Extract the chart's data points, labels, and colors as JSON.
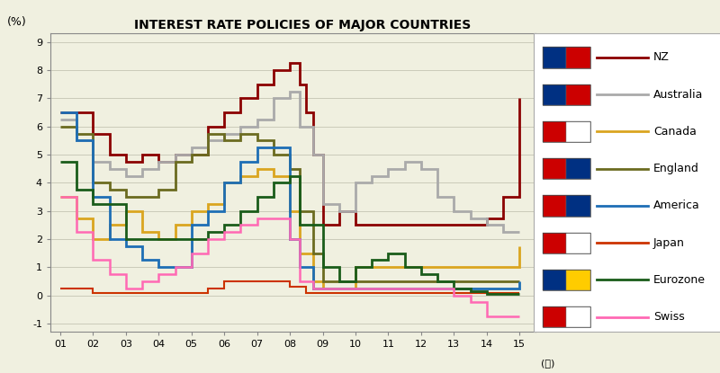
{
  "title": "INTEREST RATE POLICIES OF MAJOR COUNTRIES",
  "ylabel": "(%)",
  "xlabel": "年",
  "background_color": "#f0f0e0",
  "plot_bg_color": "#f0f0e0",
  "ylim": [
    -1.3,
    9.3
  ],
  "yticks": [
    -1,
    0,
    1,
    2,
    3,
    4,
    5,
    6,
    7,
    8,
    9
  ],
  "xticks": [
    1,
    2,
    3,
    4,
    5,
    6,
    7,
    8,
    9,
    10,
    11,
    12,
    13,
    14,
    15
  ],
  "xlim": [
    0.7,
    15.5
  ],
  "series": {
    "NZ": {
      "color": "#8b0000",
      "lw": 2.0,
      "data": [
        [
          1,
          6.5
        ],
        [
          2,
          6.5
        ],
        [
          2,
          5.75
        ],
        [
          2.5,
          5.75
        ],
        [
          2.5,
          5.0
        ],
        [
          3,
          5.0
        ],
        [
          3,
          4.75
        ],
        [
          3.5,
          4.75
        ],
        [
          3.5,
          5.0
        ],
        [
          4,
          5.0
        ],
        [
          4,
          4.75
        ],
        [
          4.5,
          4.75
        ],
        [
          4.5,
          5.0
        ],
        [
          5,
          5.0
        ],
        [
          5,
          5.0
        ],
        [
          5.5,
          5.0
        ],
        [
          5.5,
          6.0
        ],
        [
          6,
          6.0
        ],
        [
          6,
          6.5
        ],
        [
          6.5,
          6.5
        ],
        [
          6.5,
          7.0
        ],
        [
          7,
          7.0
        ],
        [
          7,
          7.5
        ],
        [
          7.5,
          7.5
        ],
        [
          7.5,
          8.0
        ],
        [
          8,
          8.0
        ],
        [
          8,
          8.25
        ],
        [
          8.3,
          8.25
        ],
        [
          8.3,
          7.5
        ],
        [
          8.5,
          7.5
        ],
        [
          8.5,
          6.5
        ],
        [
          8.7,
          6.5
        ],
        [
          8.7,
          5.0
        ],
        [
          9,
          5.0
        ],
        [
          9,
          2.5
        ],
        [
          9.5,
          2.5
        ],
        [
          9.5,
          3.0
        ],
        [
          10,
          3.0
        ],
        [
          10,
          2.5
        ],
        [
          13,
          2.5
        ],
        [
          13,
          2.5
        ],
        [
          14,
          2.5
        ],
        [
          14,
          2.75
        ],
        [
          14.5,
          2.75
        ],
        [
          14.5,
          3.5
        ],
        [
          15,
          3.5
        ],
        [
          15,
          7.0
        ]
      ]
    },
    "Australia": {
      "color": "#aaaaaa",
      "lw": 2.0,
      "data": [
        [
          1,
          6.25
        ],
        [
          1.5,
          6.25
        ],
        [
          1.5,
          5.5
        ],
        [
          2,
          5.5
        ],
        [
          2,
          4.75
        ],
        [
          2.5,
          4.75
        ],
        [
          2.5,
          4.5
        ],
        [
          3,
          4.5
        ],
        [
          3,
          4.25
        ],
        [
          3.5,
          4.25
        ],
        [
          3.5,
          4.5
        ],
        [
          4,
          4.5
        ],
        [
          4,
          4.75
        ],
        [
          4.5,
          4.75
        ],
        [
          4.5,
          5.0
        ],
        [
          5,
          5.0
        ],
        [
          5,
          5.25
        ],
        [
          5.5,
          5.25
        ],
        [
          5.5,
          5.5
        ],
        [
          6,
          5.5
        ],
        [
          6,
          5.75
        ],
        [
          6.5,
          5.75
        ],
        [
          6.5,
          6.0
        ],
        [
          7,
          6.0
        ],
        [
          7,
          6.25
        ],
        [
          7.5,
          6.25
        ],
        [
          7.5,
          7.0
        ],
        [
          8,
          7.0
        ],
        [
          8,
          7.25
        ],
        [
          8.3,
          7.25
        ],
        [
          8.3,
          6.0
        ],
        [
          8.7,
          6.0
        ],
        [
          8.7,
          5.0
        ],
        [
          9,
          5.0
        ],
        [
          9,
          3.25
        ],
        [
          9.5,
          3.25
        ],
        [
          9.5,
          3.0
        ],
        [
          10,
          3.0
        ],
        [
          10,
          4.0
        ],
        [
          10.5,
          4.0
        ],
        [
          10.5,
          4.25
        ],
        [
          11,
          4.25
        ],
        [
          11,
          4.5
        ],
        [
          11.5,
          4.5
        ],
        [
          11.5,
          4.75
        ],
        [
          12,
          4.75
        ],
        [
          12,
          4.5
        ],
        [
          12.5,
          4.5
        ],
        [
          12.5,
          3.5
        ],
        [
          13,
          3.5
        ],
        [
          13,
          3.0
        ],
        [
          13.5,
          3.0
        ],
        [
          13.5,
          2.75
        ],
        [
          14,
          2.75
        ],
        [
          14,
          2.5
        ],
        [
          14.5,
          2.5
        ],
        [
          14.5,
          2.25
        ],
        [
          15,
          2.25
        ],
        [
          15,
          2.25
        ]
      ]
    },
    "Canada": {
      "color": "#daa520",
      "lw": 2.0,
      "data": [
        [
          1,
          3.5
        ],
        [
          1.5,
          3.5
        ],
        [
          1.5,
          2.75
        ],
        [
          2,
          2.75
        ],
        [
          2,
          2.0
        ],
        [
          2.5,
          2.0
        ],
        [
          2.5,
          2.5
        ],
        [
          3,
          2.5
        ],
        [
          3,
          3.0
        ],
        [
          3.5,
          3.0
        ],
        [
          3.5,
          2.25
        ],
        [
          4,
          2.25
        ],
        [
          4,
          2.0
        ],
        [
          4.5,
          2.0
        ],
        [
          4.5,
          2.5
        ],
        [
          5,
          2.5
        ],
        [
          5,
          3.0
        ],
        [
          5.5,
          3.0
        ],
        [
          5.5,
          3.25
        ],
        [
          6,
          3.25
        ],
        [
          6,
          4.0
        ],
        [
          6.5,
          4.0
        ],
        [
          6.5,
          4.25
        ],
        [
          7,
          4.25
        ],
        [
          7,
          4.5
        ],
        [
          7.5,
          4.5
        ],
        [
          7.5,
          4.25
        ],
        [
          8,
          4.25
        ],
        [
          8,
          3.0
        ],
        [
          8.3,
          3.0
        ],
        [
          8.3,
          1.5
        ],
        [
          8.7,
          1.5
        ],
        [
          8.7,
          0.5
        ],
        [
          9,
          0.5
        ],
        [
          9,
          0.25
        ],
        [
          10,
          0.25
        ],
        [
          10,
          1.0
        ],
        [
          11,
          1.0
        ],
        [
          12,
          1.0
        ],
        [
          13,
          1.0
        ],
        [
          14,
          1.0
        ],
        [
          15,
          1.0
        ],
        [
          15,
          1.75
        ]
      ]
    },
    "England": {
      "color": "#6b6b20",
      "lw": 2.0,
      "data": [
        [
          1,
          6.0
        ],
        [
          1.5,
          6.0
        ],
        [
          1.5,
          5.75
        ],
        [
          2,
          5.75
        ],
        [
          2,
          4.0
        ],
        [
          2.5,
          4.0
        ],
        [
          2.5,
          3.75
        ],
        [
          3,
          3.75
        ],
        [
          3,
          3.5
        ],
        [
          3.5,
          3.5
        ],
        [
          3.5,
          3.5
        ],
        [
          4,
          3.5
        ],
        [
          4,
          3.75
        ],
        [
          4.5,
          3.75
        ],
        [
          4.5,
          4.75
        ],
        [
          5,
          4.75
        ],
        [
          5,
          5.0
        ],
        [
          5.5,
          5.0
        ],
        [
          5.5,
          5.75
        ],
        [
          6,
          5.75
        ],
        [
          6,
          5.5
        ],
        [
          6.5,
          5.5
        ],
        [
          6.5,
          5.75
        ],
        [
          7,
          5.75
        ],
        [
          7,
          5.5
        ],
        [
          7.5,
          5.5
        ],
        [
          7.5,
          5.0
        ],
        [
          8,
          5.0
        ],
        [
          8,
          4.5
        ],
        [
          8.3,
          4.5
        ],
        [
          8.3,
          3.0
        ],
        [
          8.7,
          3.0
        ],
        [
          8.7,
          1.5
        ],
        [
          9,
          1.5
        ],
        [
          9,
          0.5
        ],
        [
          10,
          0.5
        ],
        [
          11,
          0.5
        ],
        [
          12,
          0.5
        ],
        [
          13,
          0.5
        ],
        [
          14,
          0.5
        ],
        [
          15,
          0.5
        ]
      ]
    },
    "America": {
      "color": "#1e6eb5",
      "lw": 2.0,
      "data": [
        [
          1,
          6.5
        ],
        [
          1.5,
          6.5
        ],
        [
          1.5,
          5.5
        ],
        [
          2,
          5.5
        ],
        [
          2,
          3.5
        ],
        [
          2.5,
          3.5
        ],
        [
          2.5,
          2.0
        ],
        [
          3,
          2.0
        ],
        [
          3,
          1.75
        ],
        [
          3.5,
          1.75
        ],
        [
          3.5,
          1.25
        ],
        [
          4,
          1.25
        ],
        [
          4,
          1.0
        ],
        [
          4.5,
          1.0
        ],
        [
          4.5,
          1.0
        ],
        [
          5,
          1.0
        ],
        [
          5,
          2.5
        ],
        [
          5.5,
          2.5
        ],
        [
          5.5,
          3.0
        ],
        [
          6,
          3.0
        ],
        [
          6,
          4.0
        ],
        [
          6.5,
          4.0
        ],
        [
          6.5,
          4.75
        ],
        [
          7,
          4.75
        ],
        [
          7,
          5.25
        ],
        [
          7.5,
          5.25
        ],
        [
          7.5,
          5.25
        ],
        [
          8,
          5.25
        ],
        [
          8,
          2.0
        ],
        [
          8.3,
          2.0
        ],
        [
          8.3,
          1.0
        ],
        [
          8.7,
          1.0
        ],
        [
          8.7,
          0.25
        ],
        [
          9,
          0.25
        ],
        [
          9,
          0.25
        ],
        [
          10,
          0.25
        ],
        [
          11,
          0.25
        ],
        [
          12,
          0.25
        ],
        [
          13,
          0.25
        ],
        [
          14,
          0.25
        ],
        [
          15,
          0.25
        ],
        [
          15,
          0.5
        ]
      ]
    },
    "Japan": {
      "color": "#cc3300",
      "lw": 1.5,
      "data": [
        [
          1,
          0.25
        ],
        [
          2,
          0.25
        ],
        [
          2,
          0.1
        ],
        [
          4,
          0.1
        ],
        [
          4,
          0.1
        ],
        [
          5,
          0.1
        ],
        [
          5,
          0.1
        ],
        [
          5.5,
          0.1
        ],
        [
          5.5,
          0.25
        ],
        [
          6,
          0.25
        ],
        [
          6,
          0.5
        ],
        [
          7,
          0.5
        ],
        [
          7,
          0.5
        ],
        [
          8,
          0.5
        ],
        [
          8,
          0.3
        ],
        [
          8.5,
          0.3
        ],
        [
          8.5,
          0.1
        ],
        [
          9,
          0.1
        ],
        [
          9,
          0.1
        ],
        [
          10,
          0.1
        ],
        [
          11,
          0.1
        ],
        [
          12,
          0.1
        ],
        [
          13,
          0.1
        ],
        [
          14,
          0.1
        ],
        [
          15,
          0.1
        ]
      ]
    },
    "Eurozone": {
      "color": "#1a5c1a",
      "lw": 2.0,
      "data": [
        [
          1,
          4.75
        ],
        [
          1.5,
          4.75
        ],
        [
          1.5,
          3.75
        ],
        [
          2,
          3.75
        ],
        [
          2,
          3.25
        ],
        [
          2.5,
          3.25
        ],
        [
          2.5,
          3.25
        ],
        [
          3,
          3.25
        ],
        [
          3,
          2.0
        ],
        [
          4,
          2.0
        ],
        [
          4,
          2.0
        ],
        [
          5,
          2.0
        ],
        [
          5,
          2.0
        ],
        [
          5.5,
          2.0
        ],
        [
          5.5,
          2.25
        ],
        [
          6,
          2.25
        ],
        [
          6,
          2.5
        ],
        [
          6.5,
          2.5
        ],
        [
          6.5,
          3.0
        ],
        [
          7,
          3.0
        ],
        [
          7,
          3.5
        ],
        [
          7.5,
          3.5
        ],
        [
          7.5,
          4.0
        ],
        [
          8,
          4.0
        ],
        [
          8,
          4.25
        ],
        [
          8.3,
          4.25
        ],
        [
          8.3,
          2.5
        ],
        [
          8.7,
          2.5
        ],
        [
          9,
          2.5
        ],
        [
          9,
          1.0
        ],
        [
          9.5,
          1.0
        ],
        [
          9.5,
          0.5
        ],
        [
          10,
          0.5
        ],
        [
          10,
          1.0
        ],
        [
          10.5,
          1.0
        ],
        [
          10.5,
          1.25
        ],
        [
          11,
          1.25
        ],
        [
          11,
          1.5
        ],
        [
          11.5,
          1.5
        ],
        [
          11.5,
          1.0
        ],
        [
          12,
          1.0
        ],
        [
          12,
          0.75
        ],
        [
          12.5,
          0.75
        ],
        [
          12.5,
          0.5
        ],
        [
          13,
          0.5
        ],
        [
          13,
          0.25
        ],
        [
          13.5,
          0.25
        ],
        [
          13.5,
          0.15
        ],
        [
          14,
          0.15
        ],
        [
          14,
          0.05
        ],
        [
          15,
          0.05
        ],
        [
          15,
          0.05
        ]
      ]
    },
    "Swiss": {
      "color": "#ff69b4",
      "lw": 1.8,
      "data": [
        [
          1,
          3.5
        ],
        [
          1.5,
          3.5
        ],
        [
          1.5,
          2.25
        ],
        [
          2,
          2.25
        ],
        [
          2,
          1.25
        ],
        [
          2.5,
          1.25
        ],
        [
          2.5,
          0.75
        ],
        [
          3,
          0.75
        ],
        [
          3,
          0.25
        ],
        [
          3.5,
          0.25
        ],
        [
          3.5,
          0.5
        ],
        [
          4,
          0.5
        ],
        [
          4,
          0.75
        ],
        [
          4.5,
          0.75
        ],
        [
          4.5,
          1.0
        ],
        [
          5,
          1.0
        ],
        [
          5,
          1.5
        ],
        [
          5.5,
          1.5
        ],
        [
          5.5,
          2.0
        ],
        [
          6,
          2.0
        ],
        [
          6,
          2.25
        ],
        [
          6.5,
          2.25
        ],
        [
          6.5,
          2.5
        ],
        [
          7,
          2.5
        ],
        [
          7,
          2.75
        ],
        [
          7.5,
          2.75
        ],
        [
          7.5,
          2.75
        ],
        [
          8,
          2.75
        ],
        [
          8,
          2.0
        ],
        [
          8.3,
          2.0
        ],
        [
          8.3,
          0.5
        ],
        [
          8.7,
          0.5
        ],
        [
          8.7,
          0.25
        ],
        [
          9,
          0.25
        ],
        [
          9,
          0.25
        ],
        [
          10,
          0.25
        ],
        [
          11,
          0.25
        ],
        [
          12,
          0.25
        ],
        [
          13,
          0.25
        ],
        [
          13,
          0.0
        ],
        [
          13.5,
          0.0
        ],
        [
          13.5,
          -0.25
        ],
        [
          14,
          -0.25
        ],
        [
          14,
          -0.75
        ],
        [
          14.5,
          -0.75
        ],
        [
          15,
          -0.75
        ]
      ]
    }
  },
  "legend_order": [
    "NZ",
    "Australia",
    "Canada",
    "England",
    "America",
    "Japan",
    "Eurozone",
    "Swiss"
  ],
  "legend_flag_colors": {
    "NZ": [
      "#003082",
      "#cc0000"
    ],
    "Australia": [
      "#003082",
      "#cc0000"
    ],
    "Canada": [
      "#cc0000",
      "#ffffff"
    ],
    "England": [
      "#cc0000",
      "#003082"
    ],
    "America": [
      "#cc0000",
      "#003082"
    ],
    "Japan": [
      "#cc0000",
      "#ffffff"
    ],
    "Eurozone": [
      "#003082",
      "#ffcc00"
    ],
    "Swiss": [
      "#cc0000",
      "#ffffff"
    ]
  }
}
